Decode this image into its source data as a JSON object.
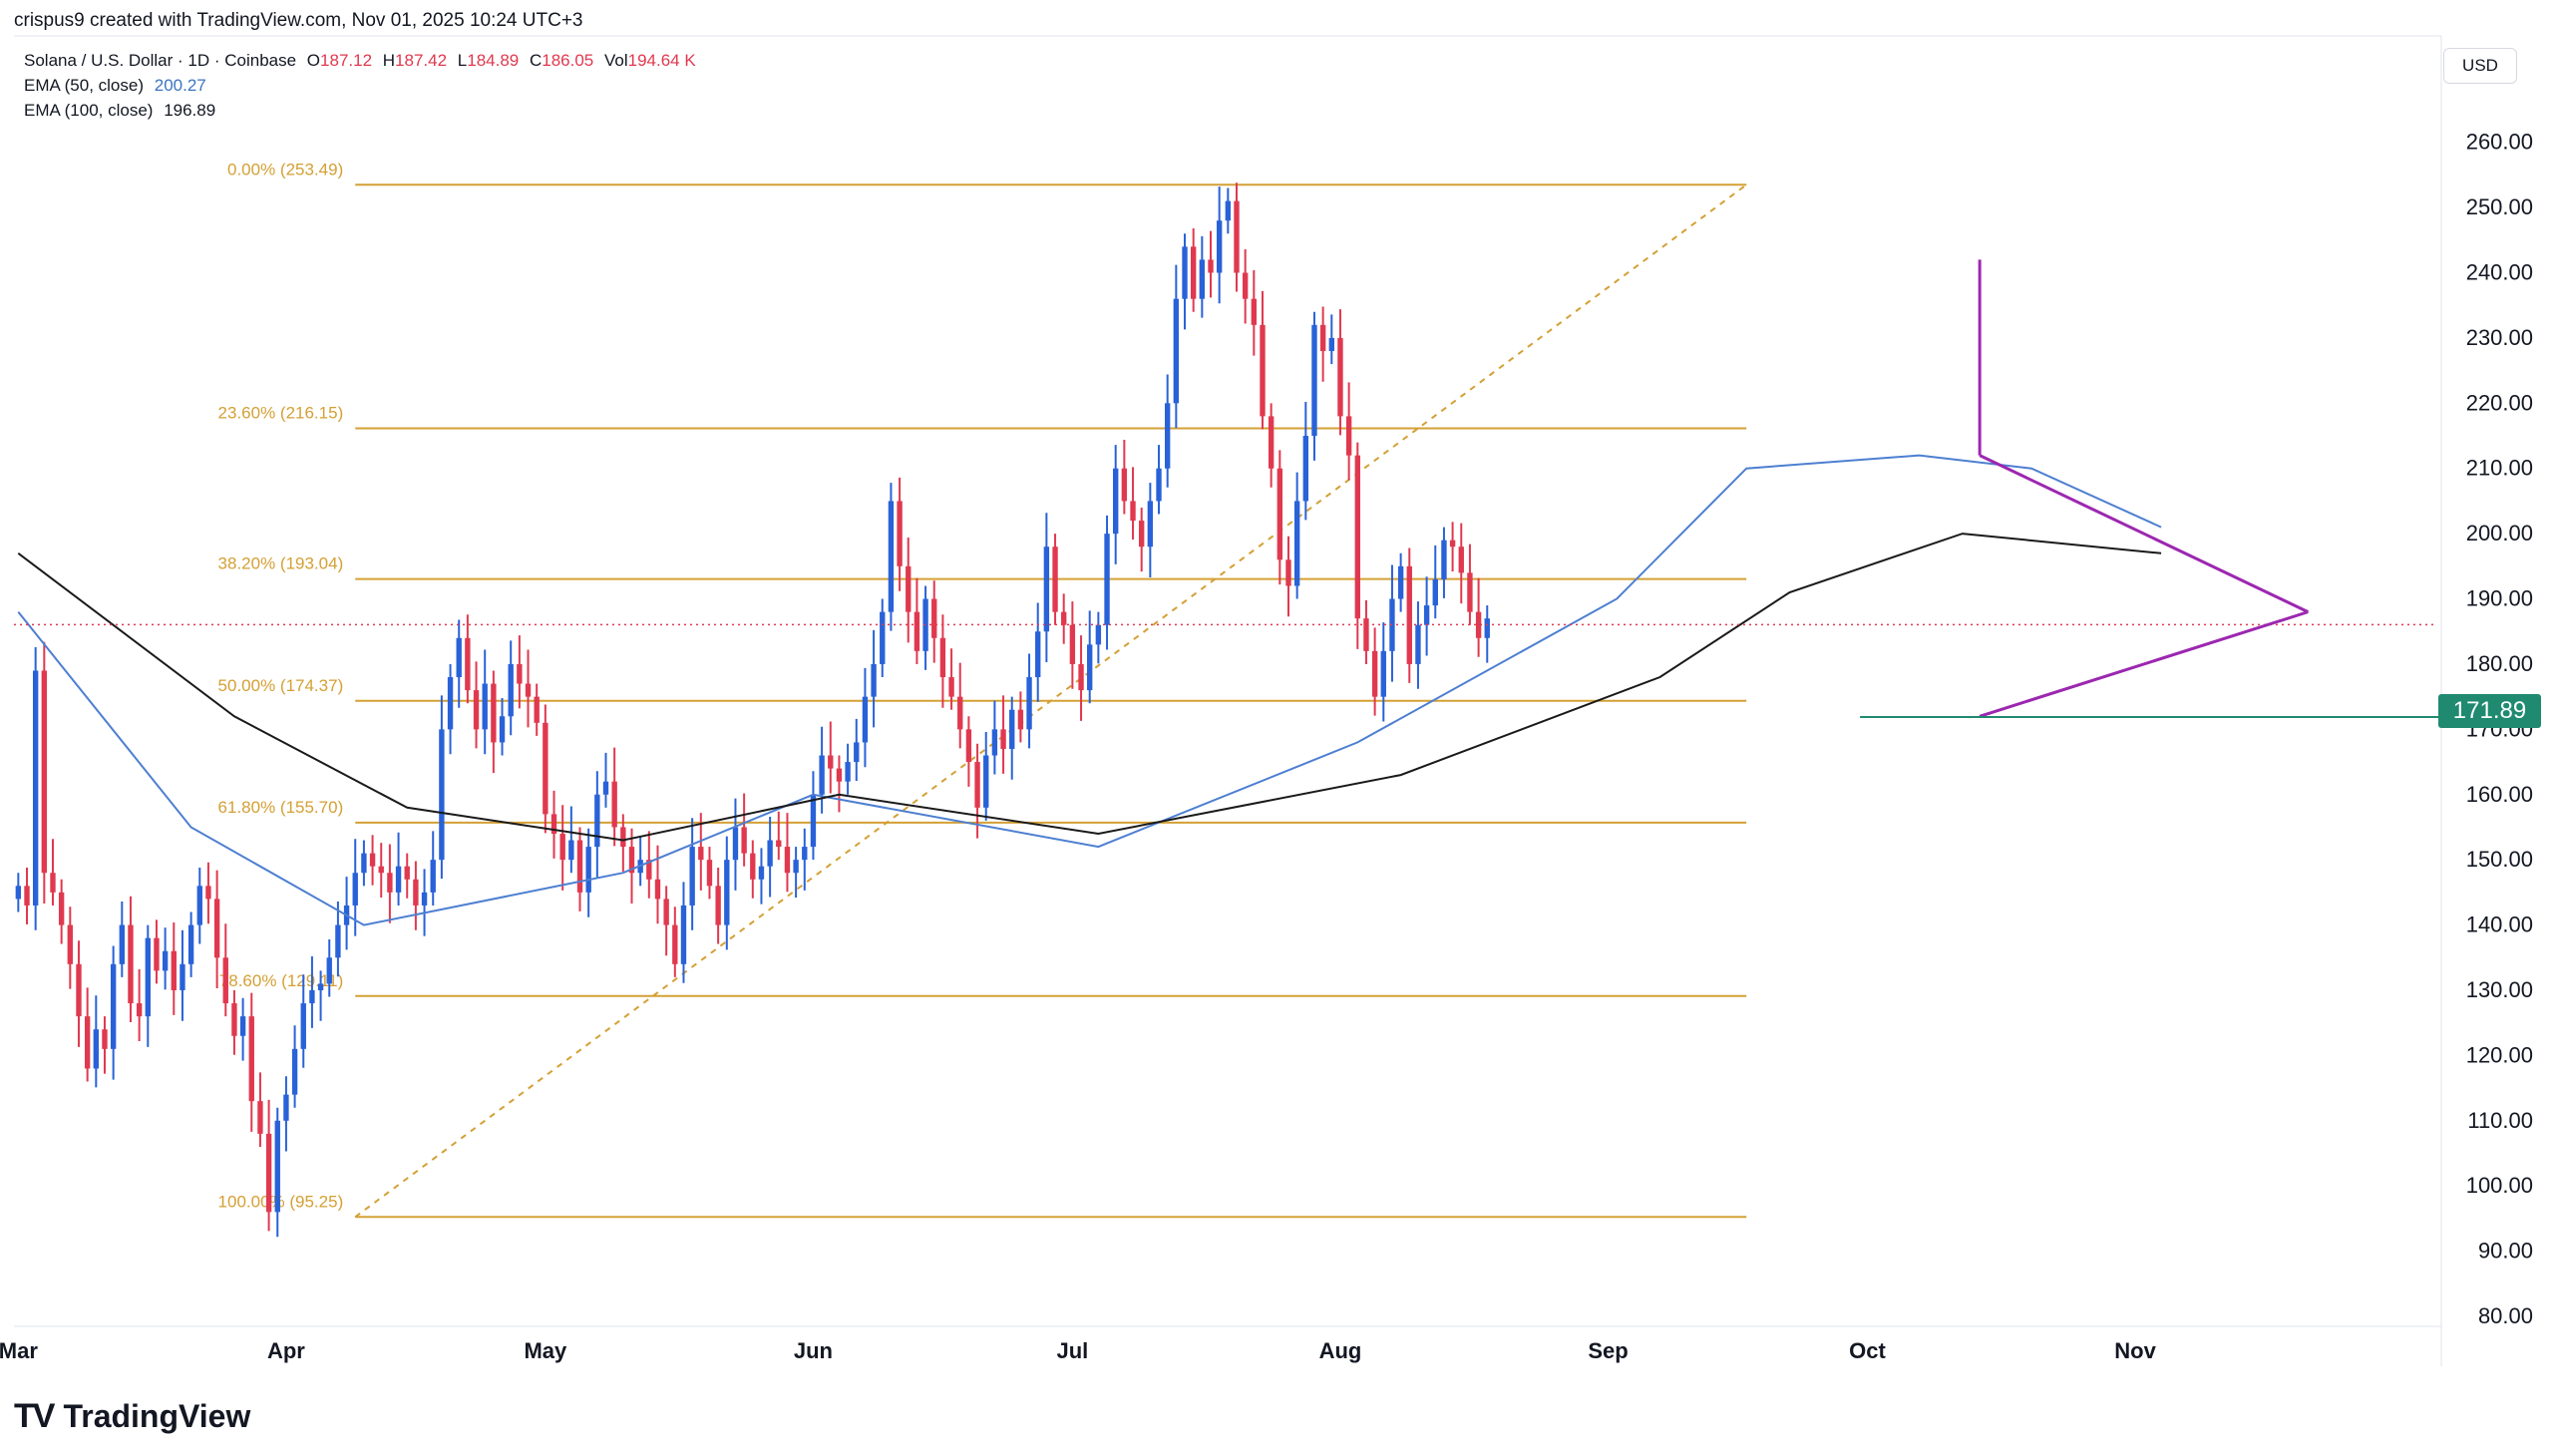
{
  "header": {
    "attribution": "crispus9 created with TradingView.com, Nov 01, 2025 10:24 UTC+3"
  },
  "legend": {
    "symbol": "Solana / U.S. Dollar · 1D · Coinbase",
    "o_label": "O",
    "o": "187.12",
    "h_label": "H",
    "h": "187.42",
    "l_label": "L",
    "l": "184.89",
    "c_label": "C",
    "c": "186.05",
    "vol_label": "Vol",
    "vol": "194.64 K",
    "ema50_label": "EMA (50, close)",
    "ema50": "200.27",
    "ema100_label": "EMA (100, close)",
    "ema100": "196.89"
  },
  "currency": "USD",
  "price_tag": "171.89",
  "logo": {
    "mark": "TV",
    "text": "TradingView"
  },
  "colors": {
    "up": "#2962d8",
    "down": "#e0394f",
    "fib": "#d4a035",
    "ema50": "#4d7fd1",
    "ema100": "#1a1a1a",
    "triangle": "#9c27b0",
    "support": "#1f8a70"
  },
  "chart_data": {
    "type": "candlestick",
    "title": "Solana / U.S. Dollar · 1D · Coinbase",
    "ylim": [
      80,
      265
    ],
    "y_ticks": [
      "260.00",
      "250.00",
      "240.00",
      "230.00",
      "220.00",
      "210.00",
      "200.00",
      "190.00",
      "180.00",
      "170.00",
      "160.00",
      "150.00",
      "140.00",
      "130.00",
      "120.00",
      "110.00",
      "100.00",
      "90.00",
      "80.00"
    ],
    "x_ticks": [
      {
        "label": "Mar",
        "day": 0
      },
      {
        "label": "Apr",
        "day": 31
      },
      {
        "label": "May",
        "day": 61
      },
      {
        "label": "Jun",
        "day": 92
      },
      {
        "label": "Jul",
        "day": 122
      },
      {
        "label": "Aug",
        "day": 153
      },
      {
        "label": "Sep",
        "day": 184
      },
      {
        "label": "Oct",
        "day": 214
      },
      {
        "label": "Nov",
        "day": 245
      }
    ],
    "candle_closes": [
      146,
      143,
      179,
      148,
      145,
      140,
      134,
      126,
      118,
      124,
      121,
      134,
      140,
      128,
      126,
      138,
      133,
      136,
      130,
      134,
      140,
      146,
      144,
      135,
      128,
      123,
      126,
      113,
      108,
      96,
      110,
      114,
      121,
      128,
      130,
      131,
      135,
      140,
      143,
      148,
      151,
      149,
      148,
      145,
      149,
      147,
      143,
      145,
      150,
      170,
      178,
      184,
      176,
      170,
      177,
      168,
      172,
      180,
      177,
      175,
      171,
      157,
      154,
      150,
      153,
      145,
      152,
      160,
      162,
      155,
      152,
      148,
      150,
      147,
      144,
      140,
      134,
      143,
      152,
      150,
      146,
      140,
      150,
      155,
      151,
      147,
      149,
      153,
      152,
      148,
      150,
      152,
      160,
      166,
      164,
      162,
      165,
      168,
      175,
      180,
      188,
      205,
      195,
      188,
      182,
      190,
      184,
      178,
      175,
      170,
      165,
      158,
      166,
      170,
      167,
      173,
      170,
      178,
      185,
      198,
      188,
      186,
      180,
      176,
      183,
      186,
      200,
      210,
      205,
      202,
      198,
      205,
      210,
      220,
      236,
      244,
      236,
      242,
      240,
      248,
      251,
      240,
      236,
      232,
      218,
      210,
      196,
      192,
      205,
      215,
      232,
      228,
      230,
      218,
      212,
      187,
      182,
      175,
      182,
      190,
      195,
      180,
      186,
      189,
      193,
      199,
      198,
      194,
      188,
      184,
      187
    ],
    "ema50": [
      {
        "day": 0,
        "v": 188
      },
      {
        "day": 20,
        "v": 155
      },
      {
        "day": 40,
        "v": 140
      },
      {
        "day": 70,
        "v": 148
      },
      {
        "day": 92,
        "v": 160
      },
      {
        "day": 125,
        "v": 152
      },
      {
        "day": 155,
        "v": 168
      },
      {
        "day": 185,
        "v": 190
      },
      {
        "day": 200,
        "v": 210
      },
      {
        "day": 220,
        "v": 212
      },
      {
        "day": 233,
        "v": 210
      },
      {
        "day": 248,
        "v": 201
      }
    ],
    "ema100": [
      {
        "day": 0,
        "v": 197
      },
      {
        "day": 25,
        "v": 172
      },
      {
        "day": 45,
        "v": 158
      },
      {
        "day": 70,
        "v": 153
      },
      {
        "day": 95,
        "v": 160
      },
      {
        "day": 125,
        "v": 154
      },
      {
        "day": 160,
        "v": 163
      },
      {
        "day": 190,
        "v": 178
      },
      {
        "day": 205,
        "v": 191
      },
      {
        "day": 225,
        "v": 200
      },
      {
        "day": 248,
        "v": 197
      }
    ],
    "fibonacci": [
      {
        "label": "0.00% (253.49)",
        "value": 253.49
      },
      {
        "label": "23.60% (216.15)",
        "value": 216.15
      },
      {
        "label": "38.20% (193.04)",
        "value": 193.04
      },
      {
        "label": "50.00% (174.37)",
        "value": 174.37
      },
      {
        "label": "61.80% (155.70)",
        "value": 155.7
      },
      {
        "label": "78.60% (129.11)",
        "value": 129.11
      },
      {
        "label": "100.00% (95.25)",
        "value": 95.25
      }
    ],
    "fib_range_days": [
      39,
      200
    ],
    "annotations": {
      "support_level": 171.89,
      "triangle_upper": [
        {
          "day": 227,
          "v": 212
        },
        {
          "day": 265,
          "v": 188
        }
      ],
      "triangle_lower": [
        {
          "day": 227,
          "v": 172
        },
        {
          "day": 265,
          "v": 188
        }
      ],
      "vertical_marker": {
        "day": 227,
        "top": 242,
        "bottom": 212
      }
    },
    "last_price": 186.05
  }
}
